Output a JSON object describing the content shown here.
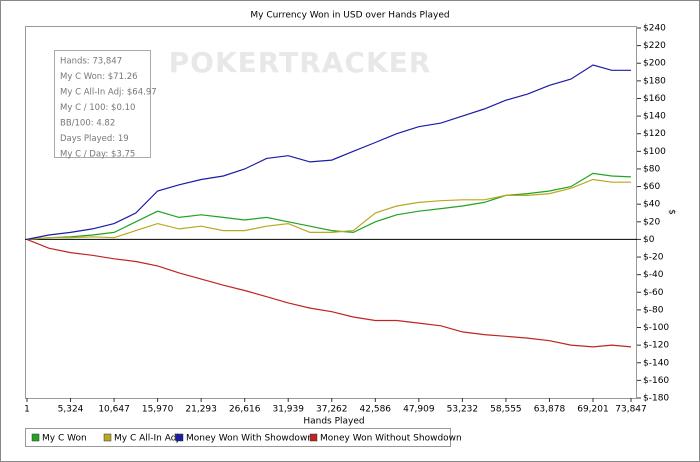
{
  "chart_data": {
    "type": "line",
    "title": "My Currency Won in USD over Hands Played",
    "x_label": "Hands Played",
    "y_label": "$",
    "watermark": "POKERTRACKER",
    "info": [
      "Hands: 73,847",
      "My C Won: $71.26",
      "My C All-In Adj: $64.97",
      "My C / 100: $0.10",
      "BB/100: 4.82",
      "Days Played: 19",
      "My C / Day: $3.75"
    ],
    "x": [
      1,
      2662,
      5324,
      8000,
      10647,
      13300,
      15970,
      18600,
      21293,
      24000,
      26616,
      29300,
      31939,
      34600,
      37262,
      39900,
      42586,
      45200,
      47909,
      50600,
      53232,
      55900,
      58555,
      61200,
      63878,
      66500,
      69201,
      71500,
      73847
    ],
    "series": [
      {
        "name": "My C Won",
        "color": "#22a322",
        "values": [
          0,
          2,
          3,
          5,
          8,
          20,
          32,
          25,
          28,
          25,
          22,
          25,
          20,
          15,
          10,
          8,
          20,
          28,
          32,
          35,
          38,
          42,
          50,
          52,
          55,
          60,
          75,
          72,
          71
        ]
      },
      {
        "name": "My C All-In Adj",
        "color": "#b9a820",
        "values": [
          0,
          2,
          2,
          3,
          2,
          10,
          18,
          12,
          15,
          10,
          10,
          15,
          18,
          8,
          8,
          10,
          30,
          38,
          42,
          44,
          45,
          45,
          50,
          50,
          52,
          58,
          68,
          65,
          65
        ]
      },
      {
        "name": "Money Won With Showdown",
        "color": "#1c1ca8",
        "values": [
          0,
          5,
          8,
          12,
          18,
          30,
          55,
          62,
          68,
          72,
          80,
          92,
          95,
          88,
          90,
          100,
          110,
          120,
          128,
          132,
          140,
          148,
          158,
          165,
          175,
          182,
          198,
          192,
          192
        ]
      },
      {
        "name": "Money Won Without Showdown",
        "color": "#c02424",
        "values": [
          0,
          -10,
          -15,
          -18,
          -22,
          -25,
          -30,
          -38,
          -45,
          -52,
          -58,
          -65,
          -72,
          -78,
          -82,
          -88,
          -92,
          -92,
          -95,
          -98,
          -105,
          -108,
          -110,
          -112,
          -115,
          -120,
          -122,
          -120,
          -122
        ]
      }
    ],
    "xlim": [
      1,
      73847
    ],
    "xticks": [
      1,
      {
        "value": 5324,
        "label": "5,324"
      },
      {
        "value": 10647,
        "label": "10,647"
      },
      {
        "value": 15970,
        "label": "15,970"
      },
      {
        "value": 21293,
        "label": "21,293"
      },
      {
        "value": 26616,
        "label": "26,616"
      },
      {
        "value": 31939,
        "label": "31,939"
      },
      {
        "value": 37262,
        "label": "37,262"
      },
      {
        "value": 42586,
        "label": "42,586"
      },
      {
        "value": 47909,
        "label": "47,909"
      },
      {
        "value": 53232,
        "label": "53,232"
      },
      {
        "value": 58555,
        "label": "58,555"
      },
      {
        "value": 63878,
        "label": "63,878"
      },
      {
        "value": 69201,
        "label": "69,201"
      },
      {
        "value": 73847,
        "label": "73,847"
      }
    ],
    "ylim": [
      -180,
      240
    ],
    "yticks": [
      {
        "value": -180,
        "label": "$-180"
      },
      {
        "value": -160,
        "label": "$-160"
      },
      {
        "value": -140,
        "label": "$-140"
      },
      {
        "value": -120,
        "label": "$-120"
      },
      {
        "value": -100,
        "label": "$-100"
      },
      {
        "value": -80,
        "label": "$-80"
      },
      {
        "value": -60,
        "label": "$-60"
      },
      {
        "value": -40,
        "label": "$-40"
      },
      {
        "value": -20,
        "label": "$-20"
      },
      {
        "value": 0,
        "label": "$0"
      },
      {
        "value": 20,
        "label": "$20"
      },
      {
        "value": 40,
        "label": "$40"
      },
      {
        "value": 60,
        "label": "$60"
      },
      {
        "value": 80,
        "label": "$80"
      },
      {
        "value": 100,
        "label": "$100"
      },
      {
        "value": 120,
        "label": "$120"
      },
      {
        "value": 140,
        "label": "$140"
      },
      {
        "value": 160,
        "label": "$160"
      },
      {
        "value": 180,
        "label": "$180"
      },
      {
        "value": 200,
        "label": "$200"
      },
      {
        "value": 220,
        "label": "$220"
      },
      {
        "value": 240,
        "label": "$240"
      }
    ],
    "zero_line": true
  }
}
